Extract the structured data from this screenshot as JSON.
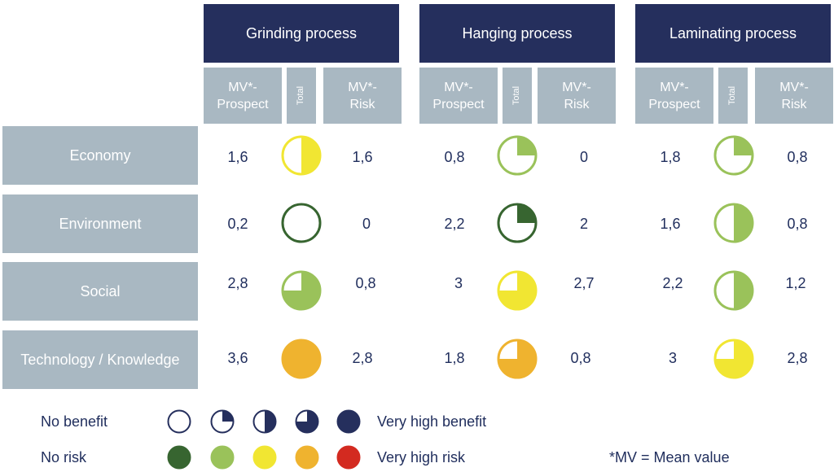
{
  "processes": [
    {
      "title": "Grinding process",
      "col_prospect": "MV*-\nProspect",
      "col_total": "Total",
      "col_risk": "MV*-\nRisk"
    },
    {
      "title": "Hanging process",
      "col_prospect": "MV*-\nProspect",
      "col_total": "Total",
      "col_risk": "MV*-\nRisk"
    },
    {
      "title": "Laminating process",
      "col_prospect": "MV*-\nProspect",
      "col_total": "Total",
      "col_risk": "MV*-\nRisk"
    }
  ],
  "rows": [
    {
      "label": "Economy",
      "cells": [
        {
          "prospect": "1,6",
          "risk": "1,6",
          "benefit_quarters": 2,
          "risk_color": "#f1e632"
        },
        {
          "prospect": "0,8",
          "risk": "0",
          "benefit_quarters": 1,
          "risk_color": "#9ac25a"
        },
        {
          "prospect": "1,8",
          "risk": "0,8",
          "benefit_quarters": 1,
          "risk_color": "#9ac25a"
        }
      ]
    },
    {
      "label": "Environment",
      "cells": [
        {
          "prospect": "0,2",
          "risk": "0",
          "benefit_quarters": 0,
          "risk_color": "#376530"
        },
        {
          "prospect": "2,2",
          "risk": "2",
          "benefit_quarters": 1,
          "risk_color": "#376530"
        },
        {
          "prospect": "1,6",
          "risk": "0,8",
          "benefit_quarters": 2,
          "risk_color": "#9ac25a"
        }
      ]
    },
    {
      "label": "Social",
      "cells": [
        {
          "prospect": "2,8",
          "risk": "0,8",
          "benefit_quarters": 3,
          "risk_color": "#9ac25a"
        },
        {
          "prospect": "3",
          "risk": "2,7",
          "benefit_quarters": 3,
          "risk_color": "#f1e632"
        },
        {
          "prospect": "2,2",
          "risk": "1,2",
          "benefit_quarters": 2,
          "risk_color": "#9ac25a"
        }
      ]
    },
    {
      "label": "Technology / Knowledge",
      "cells": [
        {
          "prospect": "3,6",
          "risk": "2,8",
          "benefit_quarters": 4,
          "risk_color": "#efb32f"
        },
        {
          "prospect": "1,8",
          "risk": "0,8",
          "benefit_quarters": 3,
          "risk_color": "#efb32f"
        },
        {
          "prospect": "3",
          "risk": "2,8",
          "benefit_quarters": 3,
          "risk_color": "#f1e632"
        }
      ]
    }
  ],
  "legend": {
    "benefit_low": "No benefit",
    "benefit_high": "Very high benefit",
    "risk_low": "No risk",
    "risk_high": "Very high risk",
    "benefit_color": "#252f5d",
    "benefit_steps": [
      0,
      1,
      2,
      3,
      4
    ],
    "risk_colors": [
      "#376530",
      "#9ac25a",
      "#f1e632",
      "#efb32f",
      "#d32a20"
    ],
    "footnote": "*MV = Mean value"
  }
}
